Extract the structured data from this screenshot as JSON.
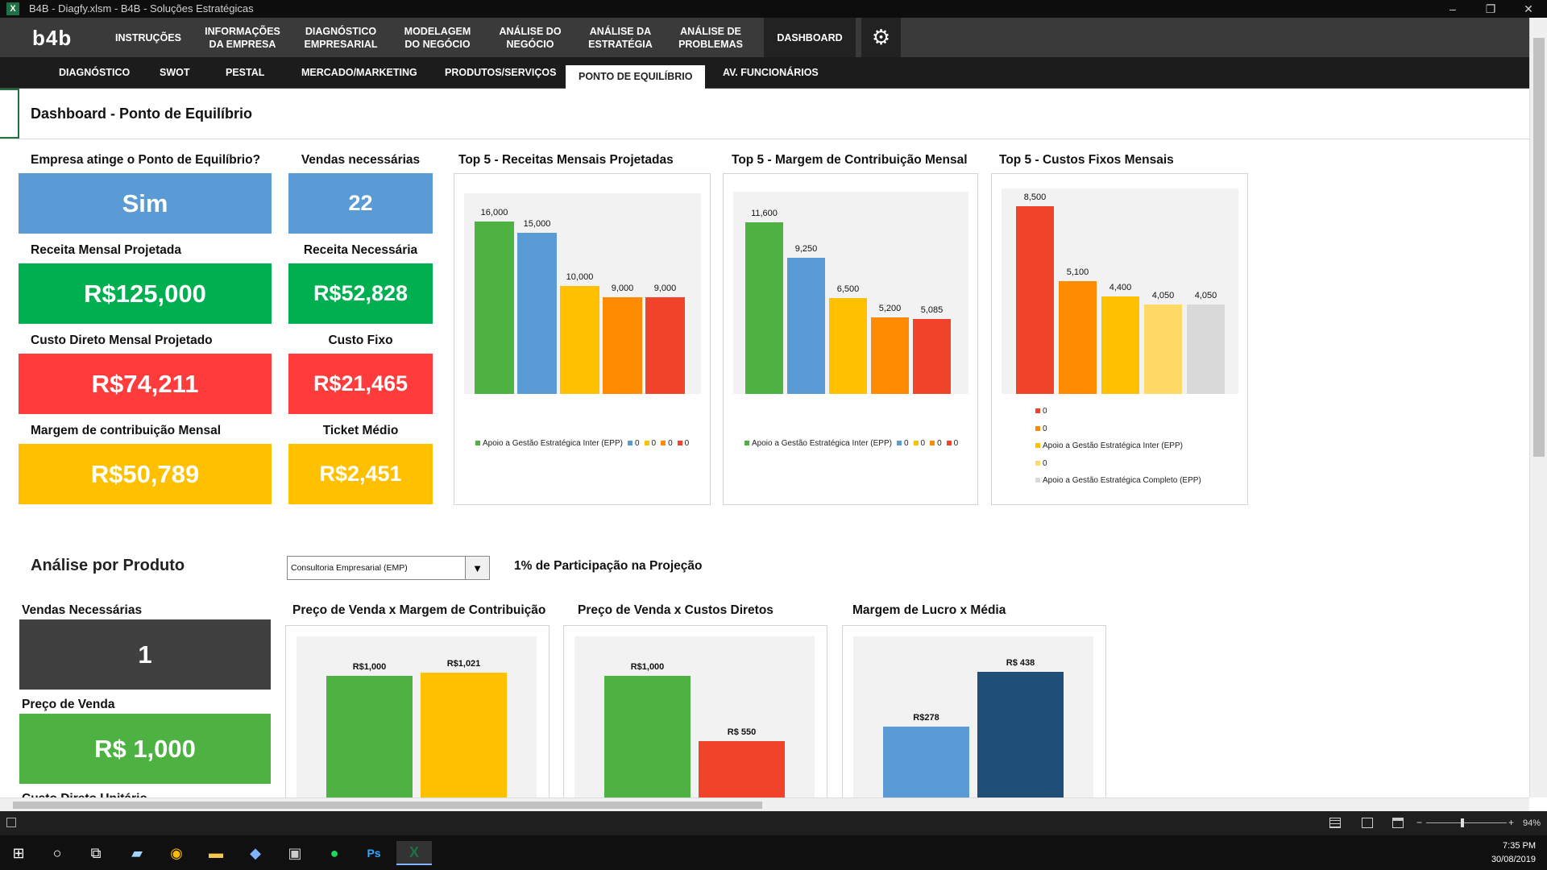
{
  "window": {
    "title": "B4B - Diagfy.xlsm - B4B - Soluções Estratégicas",
    "app_icon": "X",
    "minimize": "–",
    "restore": "❐",
    "close": "✕"
  },
  "main_nav": {
    "logo": "b4b",
    "items": [
      {
        "label": "INSTRUÇÕES"
      },
      {
        "label": "INFORMAÇÕES\nDA EMPRESA"
      },
      {
        "label": "DIAGNÓSTICO\nEMPRESARIAL"
      },
      {
        "label": "MODELAGEM\nDO NEGÓCIO"
      },
      {
        "label": "ANÁLISE DO\nNEGÓCIO"
      },
      {
        "label": "ANÁLISE DA\nESTRATÉGIA"
      },
      {
        "label": "ANÁLISE DE\nPROBLEMAS"
      },
      {
        "label": "DASHBOARD"
      }
    ],
    "settings_icon": "gear-icon"
  },
  "sub_nav": {
    "items": [
      {
        "label": "DIAGNÓSTICO"
      },
      {
        "label": "SWOT"
      },
      {
        "label": "PESTAL"
      },
      {
        "label": "MERCADO/MARKETING"
      },
      {
        "label": "PRODUTOS/SERVIÇOS"
      },
      {
        "label": "PONTO DE EQUILÍBRIO"
      },
      {
        "label": "AV. FUNCIONÁRIOS"
      }
    ]
  },
  "page_title": "Dashboard - Ponto de Equilíbrio",
  "kpis": {
    "equilibrium_label": "Empresa atinge o Ponto de Equilíbrio?",
    "equilibrium_value": "Sim",
    "sales_needed_label": "Vendas necessárias",
    "sales_needed_value": "22",
    "revenue_label": "Receita Mensal Projetada",
    "revenue_value": "R$125,000",
    "revenue_needed_label": "Receita Necessária",
    "revenue_needed_value": "R$52,828",
    "direct_cost_label": "Custo Direto Mensal Projetado",
    "direct_cost_value": "R$74,211",
    "fixed_cost_label": "Custo Fixo",
    "fixed_cost_value": "R$21,465",
    "margin_label": "Margem de contribuição Mensal",
    "margin_value": "R$50,789",
    "ticket_label": "Ticket Médio",
    "ticket_value": "R$2,451"
  },
  "colors": {
    "blue": "#5b9bd5",
    "green": "#00b050",
    "red": "#ff3b3b",
    "yellow": "#ffc000",
    "dark": "#404040",
    "green2": "#4eb242"
  },
  "chart_data": [
    {
      "type": "bar",
      "title": "Top 5 - Receitas Mensais Projetadas",
      "ylim": [
        0,
        17000
      ],
      "categories": [
        "",
        "",
        "",
        "",
        ""
      ],
      "values": [
        16000,
        15000,
        10000,
        9000,
        9000
      ],
      "value_labels": [
        "16,000",
        "15,000",
        "10,000",
        "9,000",
        "9,000"
      ],
      "colors": [
        "#4eb242",
        "#5b9bd5",
        "#ffc000",
        "#ff8c00",
        "#f0432a"
      ],
      "legend": [
        "Apoio a Gestão Estratégica Inter (EPP)",
        "0",
        "0",
        "0",
        "0"
      ]
    },
    {
      "type": "bar",
      "title": "Top 5 - Margem de Contribuição Mensal",
      "ylim": [
        0,
        12500
      ],
      "categories": [
        "",
        "",
        "",
        "",
        ""
      ],
      "values": [
        11600,
        9250,
        6500,
        5200,
        5085
      ],
      "value_labels": [
        "11,600",
        "9,250",
        "6,500",
        "5,200",
        "5,085"
      ],
      "colors": [
        "#4eb242",
        "#5b9bd5",
        "#ffc000",
        "#ff8c00",
        "#f0432a"
      ],
      "legend": [
        "Apoio a Gestão Estratégica Inter (EPP)",
        "0",
        "0",
        "0",
        "0"
      ]
    },
    {
      "type": "bar",
      "title": "Top 5 - Custos Fixos Mensais",
      "ylim": [
        0,
        8500
      ],
      "categories": [
        "",
        "",
        "",
        "",
        ""
      ],
      "values": [
        8500,
        5100,
        4400,
        4050,
        4050
      ],
      "value_labels": [
        "8,500",
        "5,100",
        "4,400",
        "4,050",
        "4,050"
      ],
      "colors": [
        "#f0432a",
        "#ff8c00",
        "#ffc000",
        "#ffd966",
        "#d9d9d9"
      ],
      "legend": [
        "0",
        "0",
        "Apoio a Gestão Estratégica Inter (EPP)",
        "0",
        "Apoio a Gestão Estratégica Completo (EPP)"
      ]
    },
    {
      "type": "bar",
      "title": "Preço de Venda x Margem de Contribuição",
      "ylim": [
        0,
        1150
      ],
      "categories": [
        "",
        ""
      ],
      "values": [
        1000,
        1021
      ],
      "value_labels": [
        "R$1,000",
        "R$1,021"
      ],
      "colors": [
        "#4eb242",
        "#ffc000"
      ]
    },
    {
      "type": "bar",
      "title": "Preço de Venda  x Custos Diretos",
      "ylim": [
        0,
        1150
      ],
      "categories": [
        "",
        ""
      ],
      "values": [
        1000,
        550
      ],
      "value_labels": [
        "R$1,000",
        "R$ 550"
      ],
      "colors": [
        "#4eb242",
        "#f0432a"
      ]
    },
    {
      "type": "bar",
      "title": "Margem de Lucro x Média",
      "ylim": [
        0,
        490
      ],
      "categories": [
        "",
        ""
      ],
      "values": [
        278,
        438
      ],
      "value_labels": [
        "R$278",
        "R$ 438"
      ],
      "colors": [
        "#5b9bd5",
        "#1f4e79"
      ]
    }
  ],
  "product": {
    "heading": "Análise por Produto",
    "select_value": "Consultoria Empresarial (EMP)",
    "participation": "1% de Participação na Projeção",
    "sales_needed_label": "Vendas Necessárias",
    "sales_needed_value": "1",
    "price_label": "Preço de Venda",
    "price_value": "R$ 1,000",
    "unit_cost_label": "Custo Direto Unitário"
  },
  "status": {
    "zoom": "94%"
  },
  "taskbar": {
    "time": "7:35 PM",
    "date": "30/08/2019"
  }
}
